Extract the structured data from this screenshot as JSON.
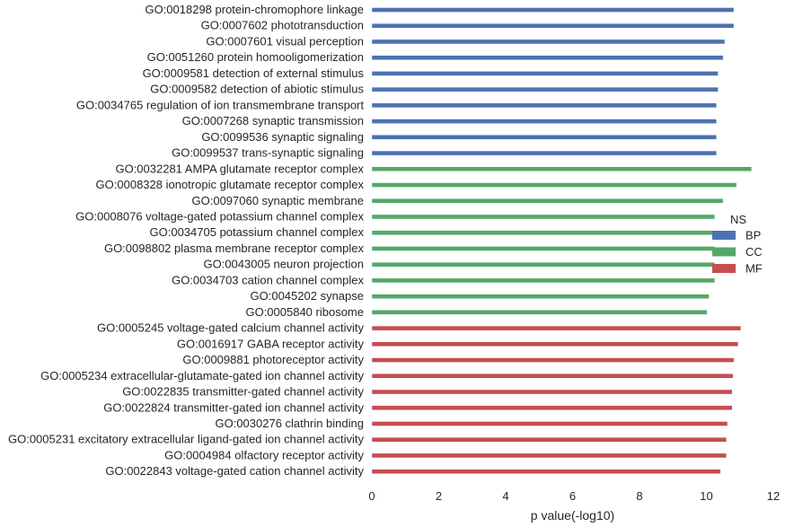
{
  "chart_data": {
    "type": "bar",
    "orientation": "horizontal",
    "xlabel": "p value(-log10)",
    "xlim": [
      0,
      12
    ],
    "xticks": [
      0,
      2,
      4,
      6,
      8,
      10,
      12
    ],
    "grid": false,
    "legend": {
      "title": "NS",
      "placement": "right",
      "entries": [
        {
          "label": "BP",
          "color": "#4c72b0"
        },
        {
          "label": "CC",
          "color": "#55a868"
        },
        {
          "label": "MF",
          "color": "#c44e52"
        }
      ]
    },
    "categories": [
      {
        "label": "GO:0018298 protein-chromophore linkage",
        "value": 10.82,
        "group": "BP"
      },
      {
        "label": "GO:0007602 phototransduction",
        "value": 10.82,
        "group": "BP"
      },
      {
        "label": "GO:0007601 visual perception",
        "value": 10.55,
        "group": "BP"
      },
      {
        "label": "GO:0051260 protein homooligomerization",
        "value": 10.5,
        "group": "BP"
      },
      {
        "label": "GO:0009581 detection of external stimulus",
        "value": 10.35,
        "group": "BP"
      },
      {
        "label": "GO:0009582 detection of abiotic stimulus",
        "value": 10.35,
        "group": "BP"
      },
      {
        "label": "GO:0034765 regulation of ion transmembrane transport",
        "value": 10.3,
        "group": "BP"
      },
      {
        "label": "GO:0007268 synaptic transmission",
        "value": 10.3,
        "group": "BP"
      },
      {
        "label": "GO:0099536 synaptic signaling",
        "value": 10.3,
        "group": "BP"
      },
      {
        "label": "GO:0099537 trans-synaptic signaling",
        "value": 10.3,
        "group": "BP"
      },
      {
        "label": "GO:0032281 AMPA glutamate receptor complex",
        "value": 11.35,
        "group": "CC"
      },
      {
        "label": "GO:0008328 ionotropic glutamate receptor complex",
        "value": 10.9,
        "group": "CC"
      },
      {
        "label": "GO:0097060 synaptic membrane",
        "value": 10.5,
        "group": "CC"
      },
      {
        "label": "GO:0008076 voltage-gated potassium channel complex",
        "value": 10.25,
        "group": "CC"
      },
      {
        "label": "GO:0034705 potassium channel complex",
        "value": 10.25,
        "group": "CC"
      },
      {
        "label": "GO:0098802 plasma membrane receptor complex",
        "value": 10.25,
        "group": "CC"
      },
      {
        "label": "GO:0043005 neuron projection",
        "value": 10.25,
        "group": "CC"
      },
      {
        "label": "GO:0034703 cation channel complex",
        "value": 10.25,
        "group": "CC"
      },
      {
        "label": "GO:0045202 synapse",
        "value": 10.08,
        "group": "CC"
      },
      {
        "label": "GO:0005840 ribosome",
        "value": 10.02,
        "group": "CC"
      },
      {
        "label": "GO:0005245 voltage-gated calcium channel activity",
        "value": 11.03,
        "group": "MF"
      },
      {
        "label": "GO:0016917 GABA receptor activity",
        "value": 10.95,
        "group": "MF"
      },
      {
        "label": "GO:0009881 photoreceptor activity",
        "value": 10.82,
        "group": "MF"
      },
      {
        "label": "GO:0005234 extracellular-glutamate-gated ion channel activity",
        "value": 10.8,
        "group": "MF"
      },
      {
        "label": "GO:0022835 transmitter-gated channel activity",
        "value": 10.77,
        "group": "MF"
      },
      {
        "label": "GO:0022824 transmitter-gated ion channel activity",
        "value": 10.77,
        "group": "MF"
      },
      {
        "label": "GO:0030276 clathrin binding",
        "value": 10.63,
        "group": "MF"
      },
      {
        "label": "GO:0005231 excitatory extracellular ligand-gated ion channel activity",
        "value": 10.6,
        "group": "MF"
      },
      {
        "label": "GO:0004984 olfactory receptor activity",
        "value": 10.6,
        "group": "MF"
      },
      {
        "label": "GO:0022843 voltage-gated cation channel activity",
        "value": 10.42,
        "group": "MF"
      }
    ]
  }
}
